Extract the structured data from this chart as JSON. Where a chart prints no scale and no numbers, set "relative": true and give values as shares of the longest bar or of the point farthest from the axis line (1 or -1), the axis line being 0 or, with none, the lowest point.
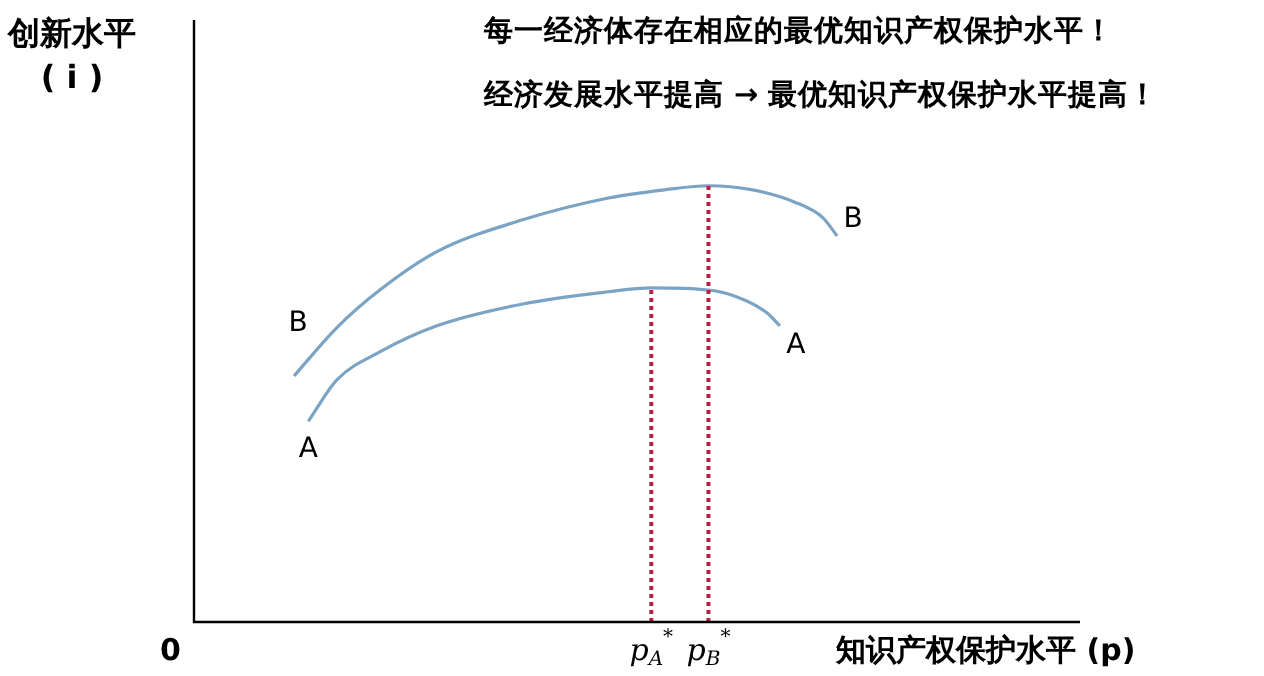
{
  "chart_data": {
    "type": "line",
    "relative": true,
    "annotations": [
      "每一经济体存在相应的最优知识产权保护水平！",
      "经济发展水平提高 → 最优知识产权保护水平提高！",
      "0"
    ],
    "ylabel": "创新水平\n( i )",
    "xlabel": "知识产权保护水平 (p)",
    "categories": [
      null,
      null,
      null,
      null,
      null,
      null,
      null,
      null,
      null,
      null,
      null,
      null,
      null,
      null,
      null,
      null,
      null,
      null,
      null,
      null,
      null,
      null,
      null,
      null,
      null,
      null,
      null,
      null,
      null,
      null,
      null,
      null,
      "p$_{A}$$^{*}$",
      null,
      null,
      null,
      "p$_{B}$$^{*}$",
      null,
      null,
      null,
      null,
      null,
      null,
      null,
      null,
      null,
      null,
      null,
      null,
      null,
      null,
      null,
      null,
      null,
      null,
      null,
      null,
      null,
      null,
      null,
      null,
      null,
      null
    ],
    "grid": false,
    "legend": false,
    "marker": "none",
    "series": [
      {
        "name": "A",
        "color": "#7ba3c4",
        "values": [
          null,
          null,
          null,
          null,
          null,
          null,
          null,
          null,
          0.46,
          null,
          0.555,
          null,
          null,
          0.619,
          null,
          null,
          null,
          0.679,
          null,
          null,
          null,
          null,
          null,
          0.729,
          null,
          null,
          null,
          null,
          null,
          0.757,
          null,
          null,
          0.766,
          null,
          null,
          null,
          0.761,
          null,
          0.745,
          null,
          0.711,
          0.679,
          null,
          null,
          null,
          null,
          null,
          null,
          null,
          null,
          null,
          null,
          null,
          null,
          null,
          null,
          null,
          null,
          null,
          null,
          null,
          null,
          null
        ]
      },
      {
        "name": "B",
        "color": "#7ba3c4",
        "values": [
          null,
          null,
          null,
          null,
          null,
          null,
          null,
          0.564,
          null,
          null,
          0.675,
          null,
          null,
          0.761,
          null,
          null,
          null,
          0.849,
          null,
          null,
          null,
          null,
          null,
          0.922,
          null,
          null,
          null,
          null,
          null,
          0.972,
          null,
          null,
          null,
          0.991,
          null,
          null,
          1,
          null,
          null,
          0.991,
          null,
          null,
          0.963,
          null,
          0.927,
          0.885,
          null,
          null,
          null,
          null,
          null,
          null,
          null,
          null,
          null,
          null,
          null,
          null,
          null,
          null,
          null,
          null,
          null
        ]
      }
    ],
    "ref_lines": [
      {
        "axis": "x",
        "value": "p$_{A}$$^{*}$",
        "color": "#b8213f",
        "line_style": "dotted"
      },
      {
        "axis": "x",
        "value": "p$_{B}$$^{*}$",
        "color": "#b8213f",
        "line_style": "dotted"
      }
    ]
  }
}
